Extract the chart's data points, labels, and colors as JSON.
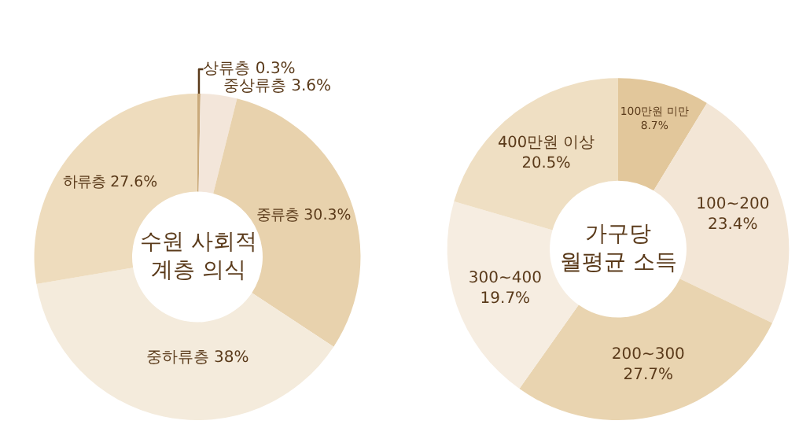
{
  "chart_data": [
    {
      "type": "donut",
      "title": "수원 사회적\n계층 의식",
      "categories": [
        "상류층",
        "중상류층",
        "중류층",
        "중하류층",
        "하류층"
      ],
      "values": [
        0.3,
        3.6,
        30.3,
        38,
        27.6
      ],
      "value_labels": [
        "0.3%",
        "3.6%",
        "30.3%",
        "38%",
        "27.6%"
      ],
      "colors": [
        "#c9a97a",
        "#f3e6da",
        "#e8d2ad",
        "#f4ebdc",
        "#eedcbd"
      ]
    },
    {
      "type": "donut",
      "title": "가구당\n월평균 소득",
      "categories": [
        "100만원 미만",
        "100~200",
        "200~300",
        "300~400",
        "400만원 이상"
      ],
      "values": [
        8.7,
        23.4,
        27.7,
        19.7,
        20.5
      ],
      "value_labels": [
        "8.7%",
        "23.4%",
        "27.7%",
        "19.7%",
        "20.5%"
      ],
      "colors": [
        "#e2c79b",
        "#f3e6d6",
        "#e9d4b0",
        "#f6ede1",
        "#efdfc3"
      ]
    }
  ]
}
